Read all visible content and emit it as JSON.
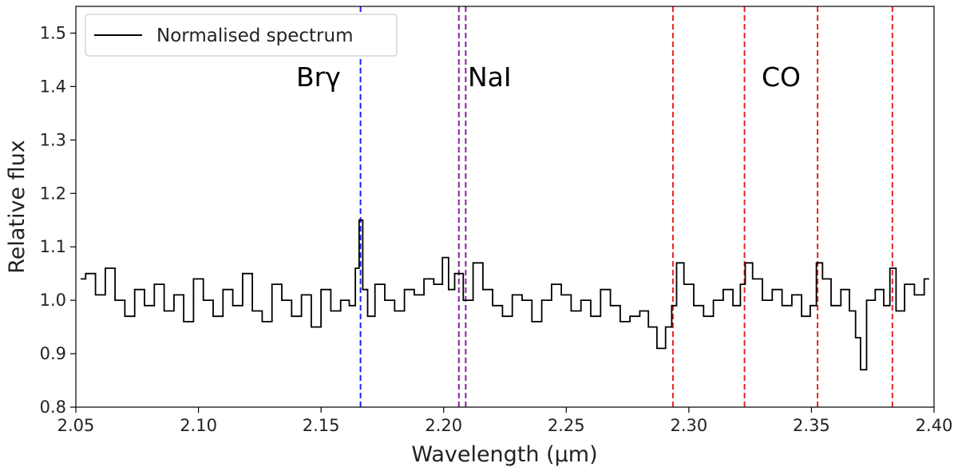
{
  "chart_data": {
    "type": "line",
    "title": "",
    "xlabel": "Wavelength (μm)",
    "ylabel": "Relative flux",
    "xlim": [
      2.05,
      2.4
    ],
    "ylim": [
      0.8,
      1.55
    ],
    "xticks": [
      2.05,
      2.1,
      2.15,
      2.2,
      2.25,
      2.3,
      2.35,
      2.4
    ],
    "xtick_labels": [
      "2.05",
      "2.10",
      "2.15",
      "2.20",
      "2.25",
      "2.30",
      "2.35",
      "2.40"
    ],
    "yticks": [
      0.8,
      0.9,
      1.0,
      1.1,
      1.2,
      1.3,
      1.4,
      1.5
    ],
    "ytick_labels": [
      "0.8",
      "0.9",
      "1.0",
      "1.1",
      "1.2",
      "1.3",
      "1.4",
      "1.5"
    ],
    "legend": {
      "location": "top-left",
      "entries": [
        "Normalised spectrum"
      ]
    },
    "series": [
      {
        "name": "Normalised spectrum",
        "color": "#000000",
        "style": "steps",
        "x": [
          2.052,
          2.056,
          2.06,
          2.064,
          2.068,
          2.072,
          2.076,
          2.08,
          2.084,
          2.088,
          2.092,
          2.096,
          2.1,
          2.104,
          2.108,
          2.112,
          2.116,
          2.12,
          2.124,
          2.128,
          2.132,
          2.136,
          2.14,
          2.144,
          2.148,
          2.152,
          2.156,
          2.16,
          2.163,
          2.165,
          2.166,
          2.168,
          2.17,
          2.174,
          2.178,
          2.182,
          2.186,
          2.19,
          2.194,
          2.198,
          2.201,
          2.203,
          2.206,
          2.21,
          2.214,
          2.218,
          2.222,
          2.226,
          2.23,
          2.234,
          2.238,
          2.242,
          2.246,
          2.25,
          2.254,
          2.258,
          2.262,
          2.266,
          2.27,
          2.274,
          2.278,
          2.282,
          2.285,
          2.289,
          2.292,
          2.294,
          2.296,
          2.3,
          2.304,
          2.308,
          2.312,
          2.316,
          2.32,
          2.322,
          2.324,
          2.328,
          2.332,
          2.336,
          2.34,
          2.344,
          2.348,
          2.351,
          2.353,
          2.356,
          2.36,
          2.364,
          2.367,
          2.369,
          2.371,
          2.374,
          2.378,
          2.381,
          2.383,
          2.386,
          2.39,
          2.394,
          2.398
        ],
        "y": [
          1.04,
          1.05,
          1.01,
          1.06,
          1.0,
          0.97,
          1.02,
          0.99,
          1.03,
          0.98,
          1.01,
          0.96,
          1.04,
          1.0,
          0.97,
          1.02,
          0.99,
          1.05,
          0.98,
          0.96,
          1.03,
          1.0,
          0.97,
          1.01,
          0.95,
          1.02,
          0.98,
          1.0,
          0.99,
          1.06,
          1.15,
          1.02,
          0.97,
          1.03,
          1.0,
          0.98,
          1.02,
          1.01,
          1.04,
          1.03,
          1.08,
          1.02,
          1.05,
          1.0,
          1.07,
          1.02,
          0.99,
          0.97,
          1.01,
          1.0,
          0.96,
          1.0,
          1.03,
          1.01,
          0.98,
          1.0,
          0.97,
          1.02,
          0.99,
          0.96,
          0.97,
          0.98,
          0.95,
          0.91,
          0.95,
          0.99,
          1.07,
          1.03,
          0.99,
          0.97,
          1.0,
          1.02,
          0.99,
          1.03,
          1.07,
          1.04,
          1.0,
          1.02,
          0.99,
          1.01,
          0.97,
          0.99,
          1.07,
          1.04,
          0.99,
          1.02,
          0.98,
          0.93,
          0.87,
          1.0,
          1.02,
          0.99,
          1.06,
          0.98,
          1.03,
          1.01,
          1.04
        ]
      }
    ],
    "vertical_lines": [
      {
        "x": 2.1661,
        "color": "#1f1fff",
        "style": "dashed",
        "group": "Brγ"
      },
      {
        "x": 2.2062,
        "color": "#8b1f9e",
        "style": "dashed",
        "group": "NaI"
      },
      {
        "x": 2.209,
        "color": "#8b1f9e",
        "style": "dashed",
        "group": "NaI"
      },
      {
        "x": 2.2935,
        "color": "#e8231f",
        "style": "dashed",
        "group": "CO"
      },
      {
        "x": 2.3227,
        "color": "#e8231f",
        "style": "dashed",
        "group": "CO"
      },
      {
        "x": 2.3525,
        "color": "#e8231f",
        "style": "dashed",
        "group": "CO"
      },
      {
        "x": 2.383,
        "color": "#e8231f",
        "style": "dashed",
        "group": "CO"
      }
    ],
    "annotations": [
      {
        "text": "Brγ",
        "x": 2.14,
        "y": 1.41
      },
      {
        "text": "NaI",
        "x": 2.212,
        "y": 1.41
      },
      {
        "text": "CO",
        "x": 2.33,
        "y": 1.41
      }
    ]
  }
}
